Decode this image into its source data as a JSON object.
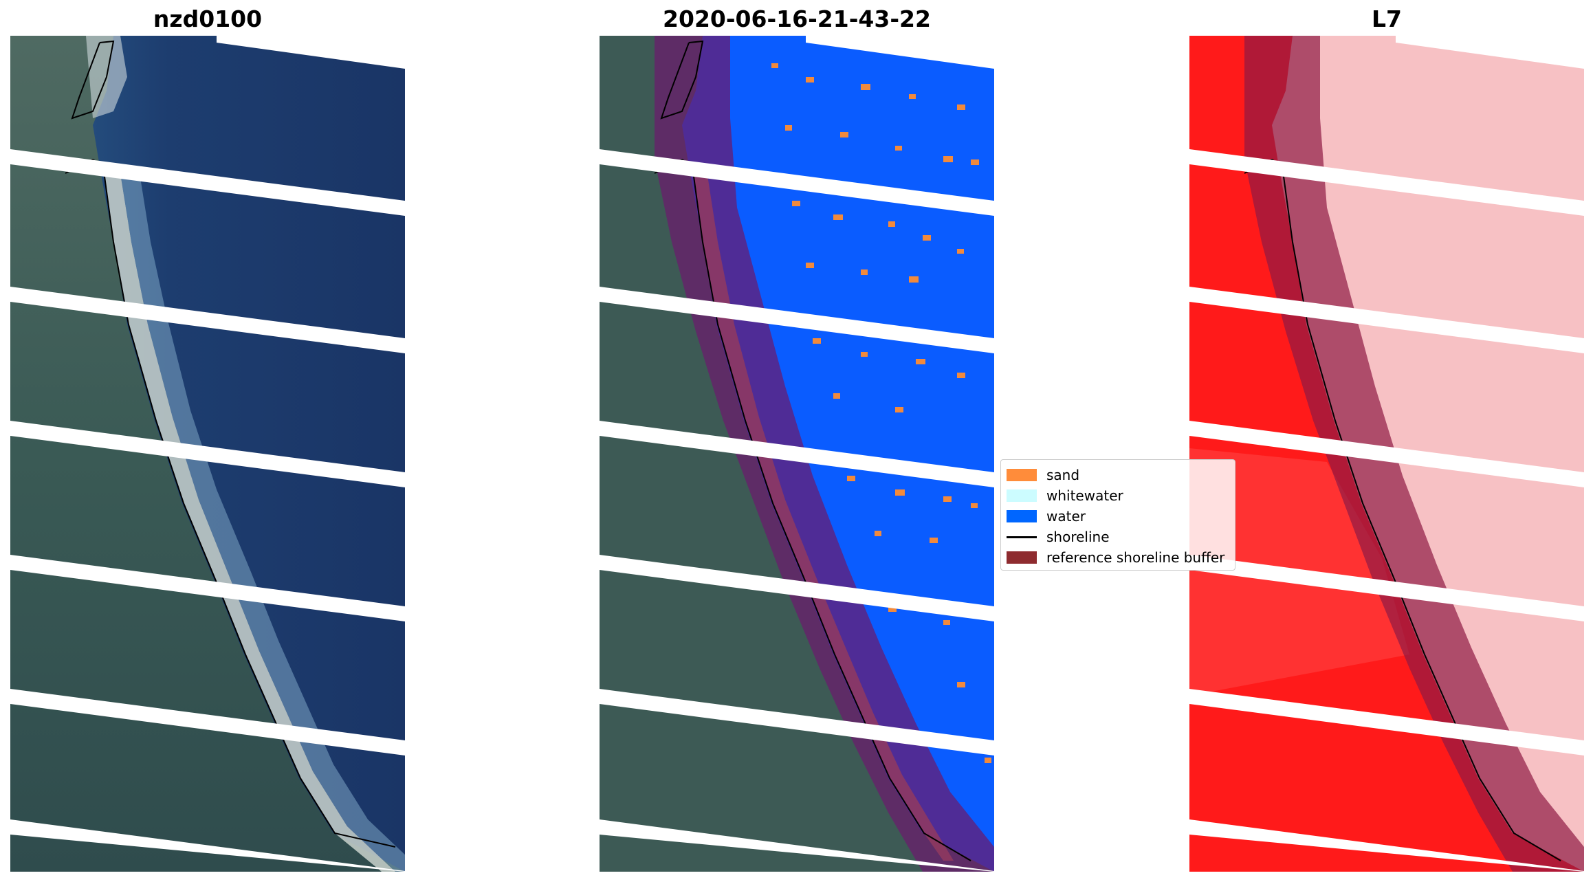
{
  "panels": [
    {
      "title": "nzd0100"
    },
    {
      "title": "2020-06-16-21-43-22"
    },
    {
      "title": "L7"
    }
  ],
  "legend": {
    "items": [
      {
        "label": "sand",
        "color": "#ff8c3a",
        "kind": "patch"
      },
      {
        "label": "whitewater",
        "color": "#ccfcff",
        "kind": "patch"
      },
      {
        "label": "water",
        "color": "#0066ff",
        "kind": "patch"
      },
      {
        "label": "shoreline",
        "color": "#000000",
        "kind": "line"
      },
      {
        "label": "reference shoreline buffer",
        "color": "#8e2b2f",
        "kind": "patch"
      }
    ]
  },
  "colors": {
    "ocean": "#1d3a6b",
    "land": "#3d5a55",
    "beach": "#c9d2cc",
    "water_class": "#0a5cff",
    "sand_class": "#f28a3c",
    "buffer_overlay": "#6b1a6e",
    "index_red": "#ff1a1a",
    "index_light": "#f7c1c4",
    "gap": "#ffffff",
    "shoreline": "#000000"
  }
}
